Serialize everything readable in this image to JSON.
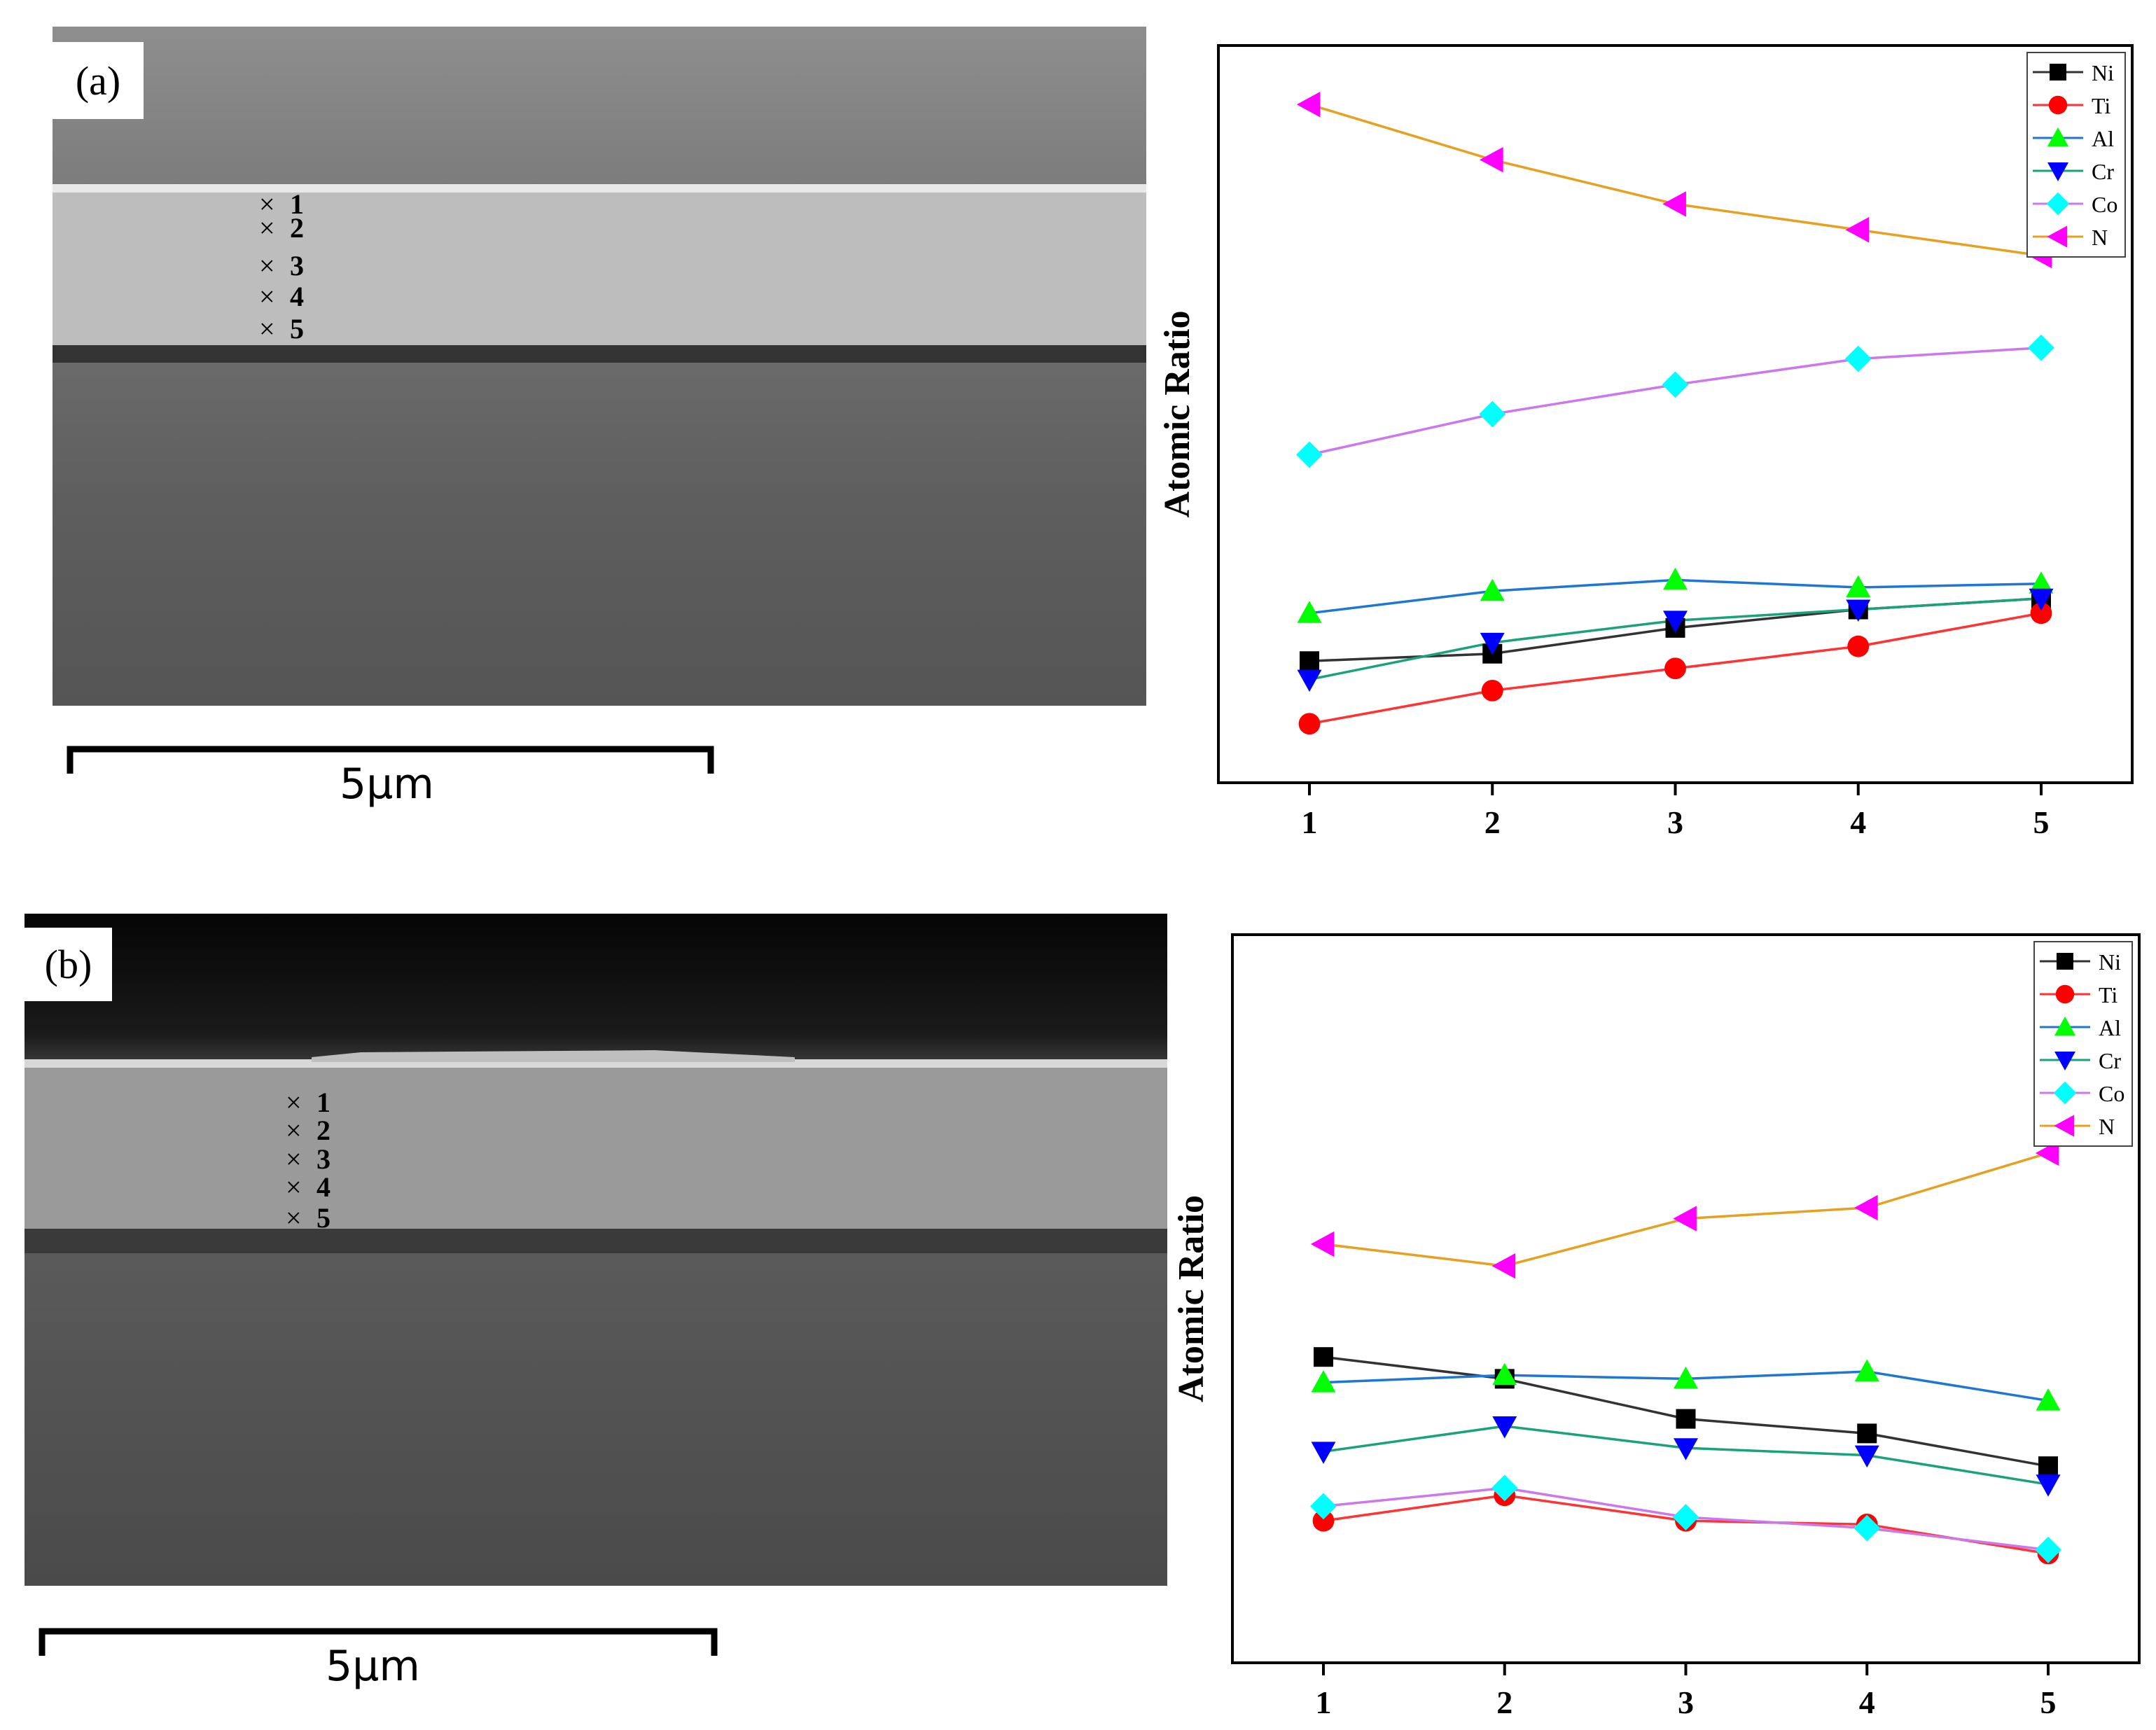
{
  "panels": [
    {
      "label": "(a)",
      "scale_bar": "5μm",
      "points": [
        "1",
        "2",
        "3",
        "4",
        "5"
      ]
    },
    {
      "label": "(b)",
      "scale_bar": "5μm",
      "points": [
        "1",
        "2",
        "3",
        "4",
        "5"
      ]
    }
  ],
  "legend_colors": {
    "Ni": "#000000",
    "Ti": "#ff0000",
    "Al": "#00ff00",
    "Cr": "#0000ff",
    "Co": "#00ffff",
    "N": "#ff00ff"
  },
  "line_colors": {
    "Ni": "#333333",
    "Ti": "#ff3333",
    "Al": "#1f77d4",
    "Cr": "#1aa37a",
    "Co": "#cc77ee",
    "N": "#e8a020"
  },
  "chart_data": [
    {
      "type": "line",
      "title": "",
      "xlabel": "",
      "ylabel": "Atomic Ratio",
      "categories": [
        "1",
        "2",
        "3",
        "4",
        "5"
      ],
      "ylim": [
        0,
        100
      ],
      "series": [
        {
          "name": "Ni",
          "values": [
            16.5,
            17.5,
            21.0,
            23.5,
            25.0
          ]
        },
        {
          "name": "Ti",
          "values": [
            8.0,
            12.5,
            15.5,
            18.5,
            23.0
          ]
        },
        {
          "name": "Al",
          "values": [
            23.0,
            26.0,
            27.5,
            26.5,
            27.0
          ]
        },
        {
          "name": "Cr",
          "values": [
            14.0,
            19.0,
            22.0,
            23.5,
            25.0
          ]
        },
        {
          "name": "Co",
          "values": [
            44.5,
            50.0,
            54.0,
            57.5,
            59.0
          ]
        },
        {
          "name": "N",
          "values": [
            92.0,
            84.5,
            78.5,
            75.0,
            71.5
          ]
        }
      ],
      "legend_position": "top-right"
    },
    {
      "type": "line",
      "title": "",
      "xlabel": "",
      "ylabel": "Atomic Ratio",
      "categories": [
        "1",
        "2",
        "3",
        "4",
        "5"
      ],
      "ylim": [
        0,
        100
      ],
      "series": [
        {
          "name": "Ni",
          "values": [
            42.0,
            39.0,
            33.5,
            31.5,
            27.0
          ]
        },
        {
          "name": "Ti",
          "values": [
            19.5,
            23.0,
            19.5,
            19.0,
            15.0
          ]
        },
        {
          "name": "Al",
          "values": [
            38.5,
            39.5,
            39.0,
            40.0,
            36.0
          ]
        },
        {
          "name": "Cr",
          "values": [
            29.0,
            32.5,
            29.5,
            28.5,
            24.5
          ]
        },
        {
          "name": "Co",
          "values": [
            21.5,
            24.0,
            20.0,
            18.5,
            15.5
          ]
        },
        {
          "name": "N",
          "values": [
            57.5,
            54.5,
            61.0,
            62.5,
            70.0
          ]
        }
      ],
      "legend_position": "top-right"
    }
  ]
}
